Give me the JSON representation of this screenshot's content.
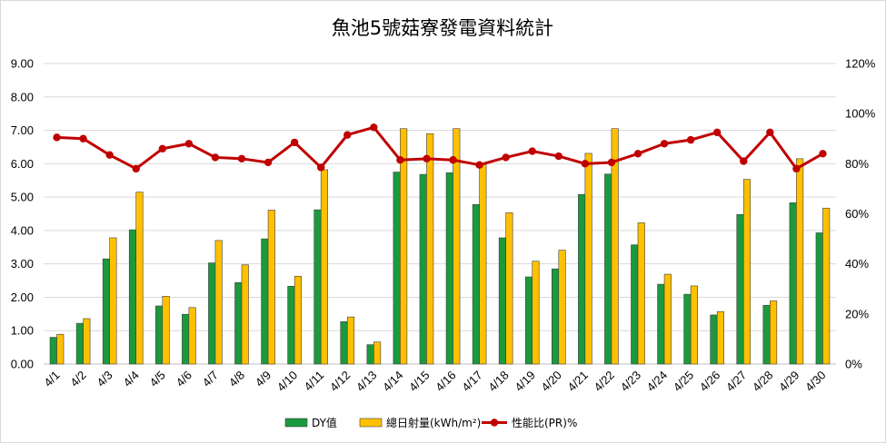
{
  "chart_data": {
    "type": "bar",
    "title": "魚池5號菇寮發電資料統計",
    "categories": [
      "4/1",
      "4/2",
      "4/3",
      "4/4",
      "4/5",
      "4/6",
      "4/7",
      "4/8",
      "4/9",
      "4/10",
      "4/11",
      "4/12",
      "4/13",
      "4/14",
      "4/15",
      "4/16",
      "4/17",
      "4/18",
      "4/19",
      "4/20",
      "4/21",
      "4/22",
      "4/23",
      "4/24",
      "4/25",
      "4/26",
      "4/27",
      "4/28",
      "4/29",
      "4/30"
    ],
    "y_left": {
      "min": 0,
      "max": 9,
      "step": 1,
      "tick_labels": [
        "0.00",
        "1.00",
        "2.00",
        "3.00",
        "4.00",
        "5.00",
        "6.00",
        "7.00",
        "8.00",
        "9.00"
      ]
    },
    "y_right": {
      "min": 0,
      "max": 120,
      "step": 20,
      "tick_labels": [
        "0%",
        "20%",
        "40%",
        "60%",
        "80%",
        "100%",
        "120%"
      ]
    },
    "grid": "horizontal",
    "legend_position": "bottom",
    "series": [
      {
        "name": "DY值",
        "kind": "bar",
        "axis": "left",
        "color": "#1a9a3c",
        "values": [
          0.8,
          1.22,
          3.15,
          4.02,
          1.74,
          1.49,
          3.03,
          2.44,
          3.75,
          2.33,
          4.62,
          1.27,
          0.58,
          5.75,
          5.68,
          5.73,
          4.78,
          3.78,
          2.61,
          2.85,
          5.08,
          5.69,
          3.57,
          2.39,
          2.09,
          1.47,
          4.48,
          1.76,
          4.83,
          3.93
        ]
      },
      {
        "name": "總日射量(kWh/m²)",
        "kind": "bar",
        "axis": "left",
        "color": "#ffc000",
        "values": [
          0.89,
          1.36,
          3.78,
          5.15,
          2.03,
          1.69,
          3.7,
          2.97,
          4.61,
          2.63,
          5.82,
          1.41,
          0.66,
          7.05,
          6.9,
          7.05,
          5.98,
          4.53,
          3.08,
          3.41,
          6.31,
          7.05,
          4.23,
          2.69,
          2.34,
          1.57,
          5.53,
          1.89,
          6.15,
          4.67
        ]
      },
      {
        "name": "性能比(PR)%",
        "kind": "line",
        "axis": "right",
        "color": "#c00000",
        "values": [
          90.5,
          90,
          83.5,
          78,
          86,
          88,
          82.5,
          82,
          80.5,
          88.5,
          78.5,
          91.5,
          94.5,
          81.5,
          82,
          81.5,
          79.5,
          82.5,
          85,
          83,
          80,
          80.5,
          84,
          88,
          89.5,
          92.5,
          81,
          92.5,
          78,
          84
        ]
      }
    ]
  }
}
